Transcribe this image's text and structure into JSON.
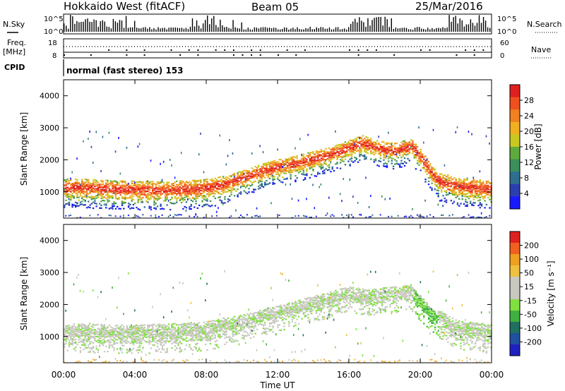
{
  "header": {
    "radar": "Hokkaido West (fitACF)",
    "beam": "Beam 05",
    "date": "25/Mar/2016"
  },
  "noise_panel": {
    "left_label": "N.Sky",
    "right_label": "N.Search",
    "left_ticks": [
      "10^5",
      "10^0"
    ],
    "right_ticks": [
      "10^5",
      "10^0"
    ]
  },
  "freq_panel": {
    "left_label_1": "Freq.",
    "left_label_2": "[MHz]",
    "left_ticks": [
      "18",
      "8"
    ],
    "right_label": "Nave",
    "right_ticks": [
      "60",
      "0"
    ]
  },
  "cpid": {
    "label": "CPID",
    "mode": "normal (fast stereo) 153"
  },
  "x_axis": {
    "label": "Time UT",
    "ticks": [
      "00:00",
      "04:00",
      "08:00",
      "12:00",
      "16:00",
      "20:00",
      "00:00"
    ]
  },
  "colors": {
    "power_scale": [
      "#1a1aff",
      "#2b3fb0",
      "#2e6e8e",
      "#3a8f5a",
      "#5faa3c",
      "#c8c820",
      "#f0b020",
      "#f08020",
      "#f05020",
      "#e02020"
    ],
    "velocity_scale": [
      "#2020c0",
      "#2050a0",
      "#207060",
      "#40b040",
      "#80e040",
      "#c8c8c0",
      "#c8c8c0",
      "#f0c040",
      "#f0a020",
      "#f06020",
      "#e02020"
    ]
  },
  "chart_data": [
    {
      "type": "heatmap",
      "title": "Power",
      "ylabel": "Slant Range [km]",
      "xlabel": "Time UT",
      "xlim": [
        0,
        24
      ],
      "ylim": [
        180,
        4500
      ],
      "y_ticks": [
        "1000",
        "2000",
        "3000",
        "4000"
      ],
      "colorbar_label": "Power [dB]",
      "colorbar_ticks": [
        "4",
        "8",
        "12",
        "16",
        "20",
        "24",
        "28"
      ],
      "main_echo_band_center_km": [
        {
          "t": 0,
          "r": 1150
        },
        {
          "t": 1,
          "r": 1150
        },
        {
          "t": 2,
          "r": 1120
        },
        {
          "t": 3,
          "r": 1100
        },
        {
          "t": 4,
          "r": 1080
        },
        {
          "t": 5,
          "r": 1070
        },
        {
          "t": 6,
          "r": 1080
        },
        {
          "t": 7,
          "r": 1100
        },
        {
          "t": 8,
          "r": 1150
        },
        {
          "t": 9,
          "r": 1250
        },
        {
          "t": 10,
          "r": 1450
        },
        {
          "t": 11,
          "r": 1650
        },
        {
          "t": 12,
          "r": 1800
        },
        {
          "t": 13,
          "r": 1900
        },
        {
          "t": 14,
          "r": 2050
        },
        {
          "t": 15,
          "r": 2200
        },
        {
          "t": 16,
          "r": 2400
        },
        {
          "t": 16.7,
          "r": 2550
        },
        {
          "t": 17.5,
          "r": 2400
        },
        {
          "t": 18.5,
          "r": 2300
        },
        {
          "t": 19.5,
          "r": 2450
        },
        {
          "t": 20,
          "r": 2100
        },
        {
          "t": 20.5,
          "r": 1700
        },
        {
          "t": 21,
          "r": 1350
        },
        {
          "t": 22,
          "r": 1200
        },
        {
          "t": 23,
          "r": 1150
        },
        {
          "t": 24,
          "r": 1100
        }
      ]
    },
    {
      "type": "heatmap",
      "title": "Velocity",
      "ylabel": "Slant Range [km]",
      "xlabel": "Time UT",
      "xlim": [
        0,
        24
      ],
      "ylim": [
        180,
        4500
      ],
      "y_ticks": [
        "1000",
        "2000",
        "3000",
        "4000"
      ],
      "colorbar_label": "Velocity [m s⁻¹]",
      "colorbar_ticks": [
        "200",
        "100",
        "50",
        "15",
        "-15",
        "-50",
        "-100",
        "-200"
      ],
      "main_echo_band_center_km": [
        {
          "t": 0,
          "r": 1150
        },
        {
          "t": 4,
          "r": 1100
        },
        {
          "t": 8,
          "r": 1200
        },
        {
          "t": 12,
          "r": 1750
        },
        {
          "t": 16,
          "r": 2350
        },
        {
          "t": 17,
          "r": 2250
        },
        {
          "t": 19.5,
          "r": 2400
        },
        {
          "t": 20.5,
          "r": 1750
        },
        {
          "t": 22,
          "r": 1250
        },
        {
          "t": 24,
          "r": 1100
        }
      ]
    }
  ]
}
